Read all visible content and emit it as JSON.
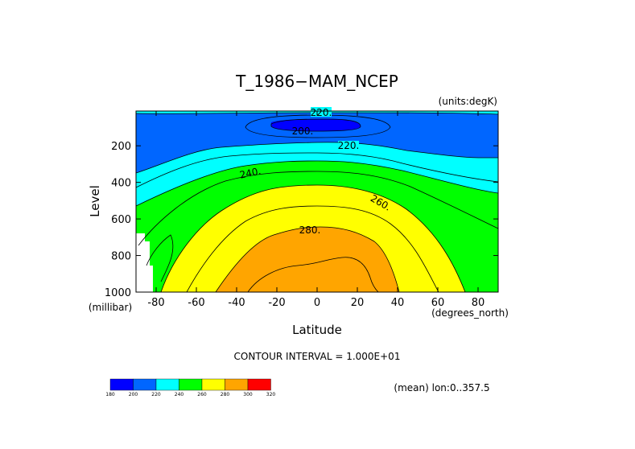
{
  "chart_data": {
    "type": "heatmap",
    "subtype": "filled-contour",
    "title": "T_1986−MAM_NCEP",
    "units_label": "(units:degK)",
    "xlabel": "Latitude",
    "ylabel": "Level",
    "x_unit_label": "(degrees_north)",
    "y_unit_label": "(millibar)",
    "x_range": [
      -90,
      90
    ],
    "y_range": [
      1000,
      10
    ],
    "x_ticks": [
      -80,
      -60,
      -40,
      -20,
      0,
      20,
      40,
      60,
      80
    ],
    "x_tick_labels": [
      "-80",
      "-60",
      "-40",
      "-20",
      "0",
      "20",
      "40",
      "60",
      "80"
    ],
    "y_ticks": [
      200,
      400,
      600,
      800,
      1000
    ],
    "y_tick_labels": [
      "200",
      "400",
      "600",
      "800",
      "1000"
    ],
    "contour_interval_text": "CONTOUR INTERVAL = 1.000E+01",
    "mean_text": "(mean) lon:0..357.5",
    "contour_labels": [
      "220.",
      "200.",
      "220.",
      "240.",
      "260.",
      "280."
    ],
    "levels": [
      180,
      200,
      220,
      240,
      260,
      280,
      300,
      320
    ],
    "colorbar": {
      "labels": [
        "180",
        "200",
        "220",
        "240",
        "260",
        "280",
        "300",
        "320"
      ],
      "colors": [
        "#0000ff",
        "#0066ff",
        "#00ffff",
        "#00ff00",
        "#ffff00",
        "#ffa500",
        "#ff0000"
      ]
    },
    "grid": false,
    "legend_position": "bottom-left"
  }
}
